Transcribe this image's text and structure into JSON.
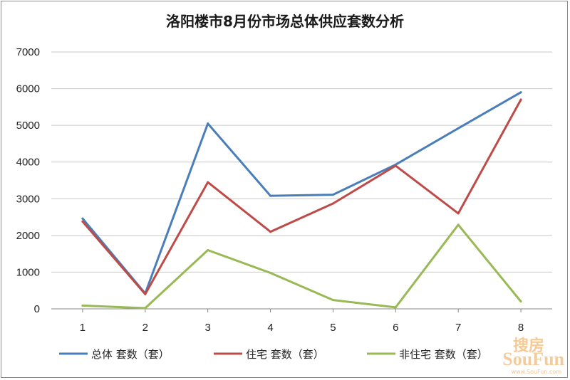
{
  "chart_data": {
    "type": "line",
    "title": "洛阳楼市8月份市场总体供应套数分析",
    "xlabel": "",
    "ylabel": "",
    "categories": [
      "1",
      "2",
      "3",
      "4",
      "5",
      "6",
      "7",
      "8"
    ],
    "ylim": [
      0,
      7000
    ],
    "yticks": [
      0,
      1000,
      2000,
      3000,
      4000,
      5000,
      6000,
      7000
    ],
    "grid": true,
    "legend_position": "bottom",
    "series": [
      {
        "name": "总体 套数（套）",
        "color": "#4a7ebb",
        "values": [
          2460,
          420,
          5050,
          3080,
          3110,
          3930,
          4920,
          5900
        ]
      },
      {
        "name": "住宅 套数（套）",
        "color": "#be4b48",
        "values": [
          2380,
          400,
          3450,
          2100,
          2870,
          3900,
          2600,
          5700
        ]
      },
      {
        "name": "非住宅 套数（套）",
        "color": "#98b954",
        "values": [
          90,
          20,
          1600,
          980,
          240,
          40,
          2290,
          200
        ]
      }
    ]
  },
  "watermark": {
    "top_text": "搜房",
    "main_text": "SouFun",
    "sub_text": "www.SouFun.com"
  }
}
